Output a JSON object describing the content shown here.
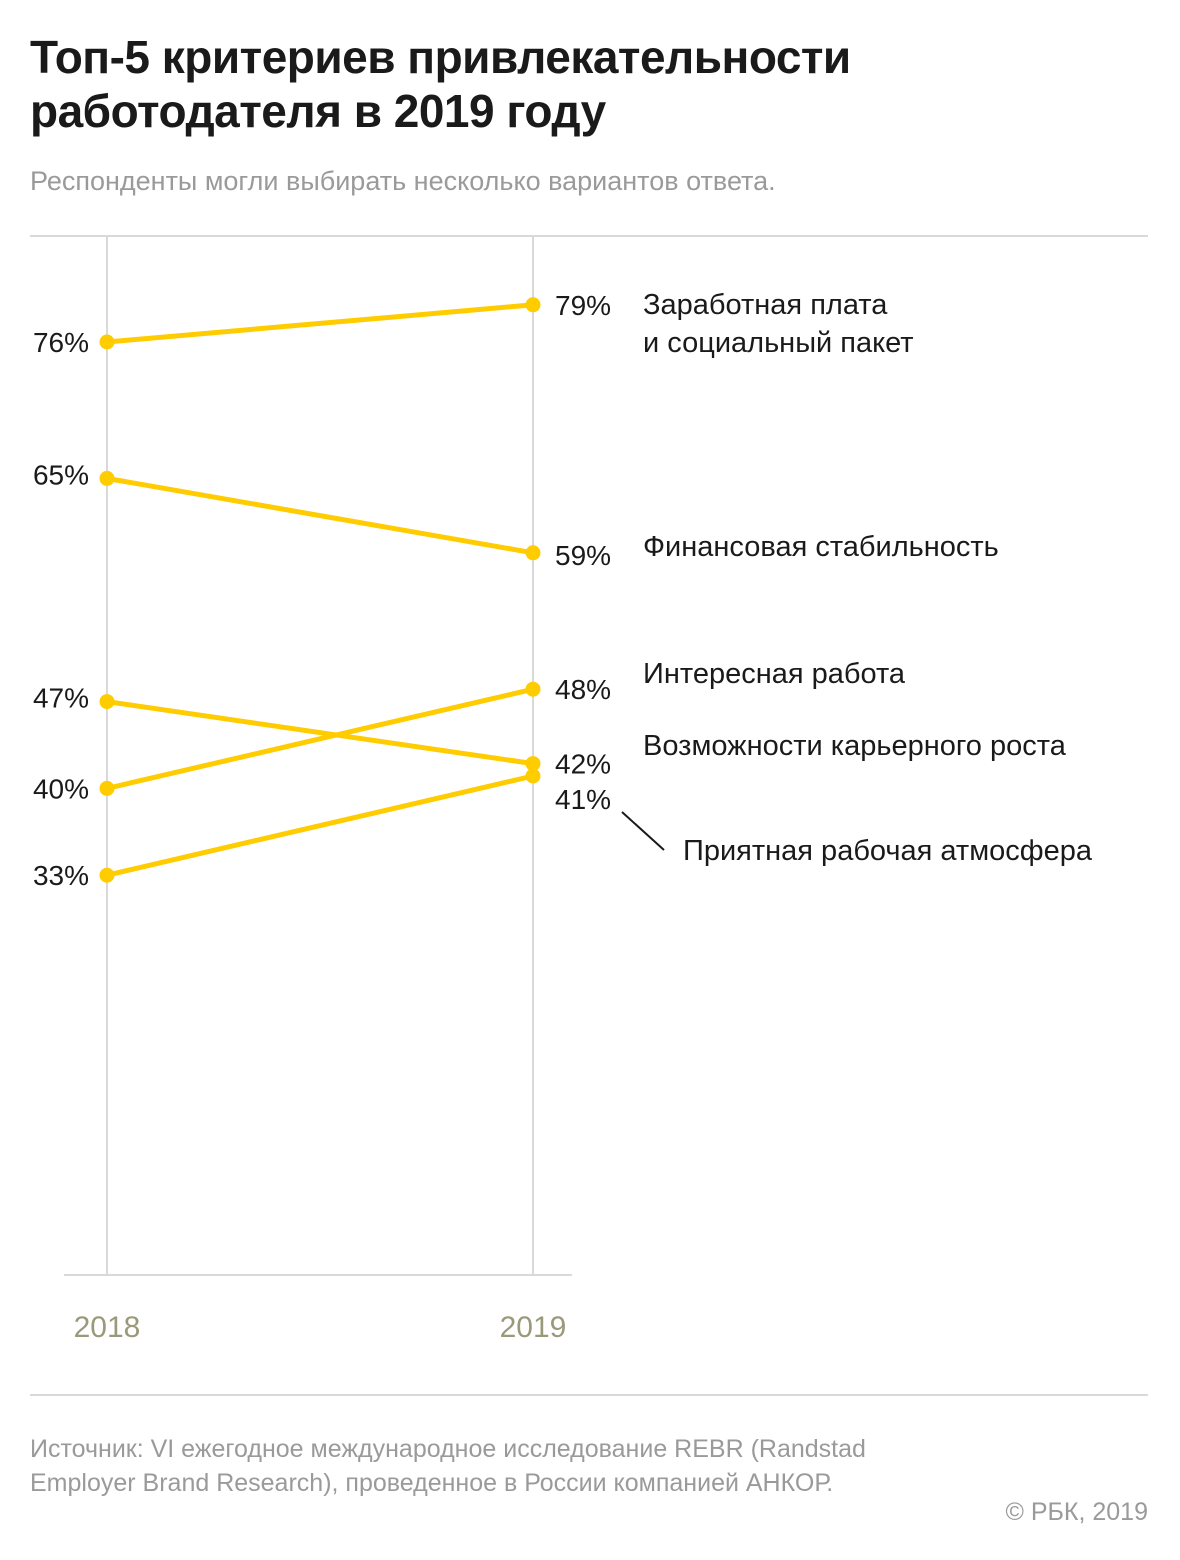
{
  "title": "Топ-5 критериев привлекательности работодателя в 2019 году",
  "subtitle": "Респонденты могли выбирать несколько вариантов ответа.",
  "source": "Источник: VI ежегодное международное исследование REBR (Randstad Employer Brand Research), проведенное в России компанией АНКОР.",
  "copyright": "© РБК, 2019",
  "colors": {
    "line": "#FFCC00",
    "axis": "#d9d9d9",
    "year_text": "#9a9a7a",
    "text": "#1a1a1a"
  },
  "chart_data": {
    "type": "line",
    "categories": [
      "2018",
      "2019"
    ],
    "value_suffix": "%",
    "series": [
      {
        "name": "Заработная плата и социальный пакет",
        "label_lines": [
          "Заработная плата",
          "и социальный пакет"
        ],
        "values": [
          76,
          79
        ]
      },
      {
        "name": "Финансовая стабильность",
        "label_lines": [
          "Финансовая стабильность"
        ],
        "values": [
          65,
          59
        ]
      },
      {
        "name": "Интересная работа",
        "label_lines": [
          "Интересная работа"
        ],
        "values": [
          40,
          48
        ]
      },
      {
        "name": "Возможности карьерного роста",
        "label_lines": [
          "Возможности карьерного роста"
        ],
        "values": [
          47,
          42
        ]
      },
      {
        "name": "Приятная рабочая атмосфера",
        "label_lines": [
          "Приятная рабочая атмосфера"
        ],
        "values": [
          33,
          41
        ]
      }
    ]
  }
}
